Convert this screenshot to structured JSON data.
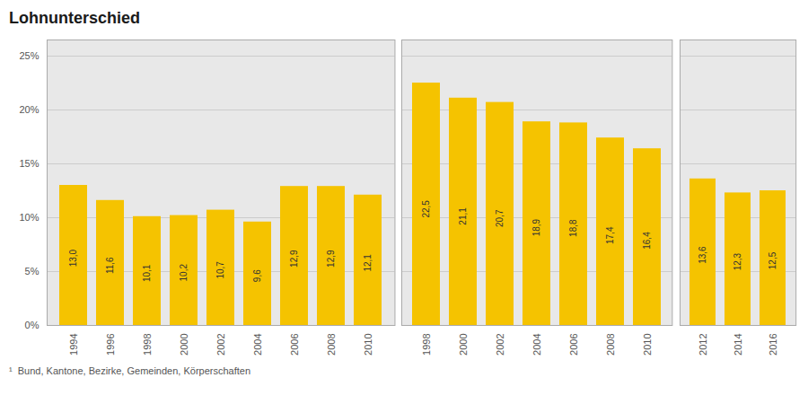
{
  "chart_data": [
    {
      "type": "bar",
      "title": "Lohnunterschied",
      "footnote": "¹  Bund, Kantone, Bezirke, Gemeinden, Körperschaften",
      "categories": [
        "1994",
        "1996",
        "1998",
        "2000",
        "2002",
        "2004",
        "2006",
        "2008",
        "2010"
      ],
      "values": [
        13.0,
        11.6,
        10.1,
        10.2,
        10.7,
        9.6,
        12.9,
        12.9,
        12.1
      ],
      "value_labels": [
        "13,0",
        "11,6",
        "10,1",
        "10,2",
        "10,7",
        "9,6",
        "12,9",
        "12,9",
        "12,1"
      ],
      "data_labels": true,
      "color": "#F5C300",
      "ylim": [
        0,
        26.5
      ],
      "yticks": [
        {
          "value": 0,
          "label": "0%"
        },
        {
          "value": 5,
          "label": "5%"
        },
        {
          "value": 10,
          "label": "10%"
        },
        {
          "value": 15,
          "label": "15%"
        },
        {
          "value": 20,
          "label": "20%"
        },
        {
          "value": 25,
          "label": "25%"
        }
      ],
      "grid": true
    },
    {
      "type": "bar",
      "categories": [
        "1998",
        "2000",
        "2002",
        "2004",
        "2006",
        "2008",
        "2010"
      ],
      "values": [
        22.5,
        21.1,
        20.7,
        18.9,
        18.8,
        17.4,
        16.4
      ],
      "value_labels": [
        "22,5",
        "21,1",
        "20,7",
        "18,9",
        "18,8",
        "17,4",
        "16,4"
      ],
      "data_labels": true,
      "color": "#F5C300",
      "ylim": [
        0,
        26.5
      ],
      "yticks": [
        0,
        5,
        10,
        15,
        20,
        25
      ],
      "grid": true,
      "tick_labels": "x"
    },
    {
      "type": "bar",
      "categories": [
        "2012",
        "2014",
        "2016"
      ],
      "values": [
        13.6,
        12.3,
        12.5
      ],
      "value_labels": [
        "13,6",
        "12,3",
        "12,5"
      ],
      "data_labels": true,
      "color": "#F5C300",
      "ylim": [
        0,
        26.5
      ],
      "yticks": [
        0,
        5,
        10,
        15,
        20,
        25
      ],
      "grid": true,
      "tick_labels": "x"
    }
  ]
}
